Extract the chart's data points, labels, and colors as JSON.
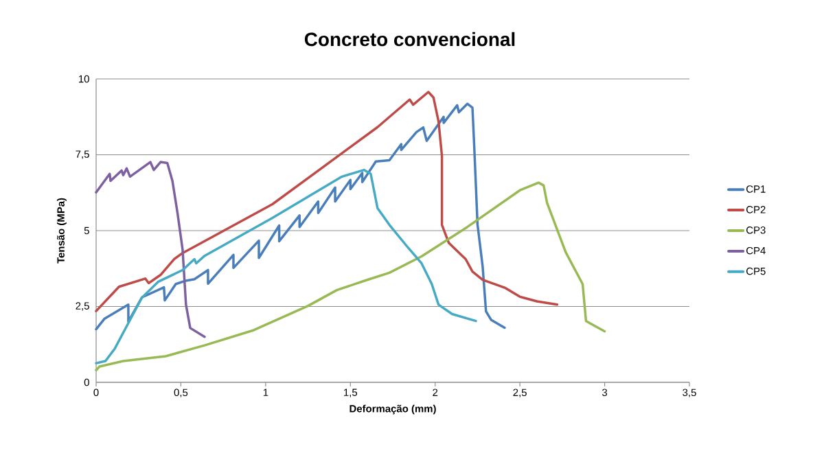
{
  "chart_data": {
    "type": "line",
    "title": "Concreto convencional",
    "xlabel": "Deformação (mm)",
    "ylabel": "Tensão (MPa)",
    "xlim": [
      0,
      3.5
    ],
    "ylim": [
      0,
      10
    ],
    "xticks": [
      0,
      {
        "value": 0.5,
        "label": "0,5"
      },
      1,
      {
        "value": 1.5,
        "label": "1,5"
      },
      2,
      {
        "value": 2.5,
        "label": "2,5"
      },
      3,
      {
        "value": 3.5,
        "label": "3,5"
      }
    ],
    "yticks": [
      0,
      {
        "value": 2.5,
        "label": "2,5"
      },
      5,
      {
        "value": 7.5,
        "label": "7,5"
      },
      10
    ],
    "grid": "y",
    "legend": "right",
    "marker": "none",
    "line_style": "solid",
    "series": [
      {
        "name": "CP1",
        "color": "#4a7ebb",
        "x": [
          0,
          0.05,
          0.19,
          0.19,
          0.27,
          0.4,
          0.405,
          0.47,
          0.53,
          0.58,
          0.66,
          0.66,
          0.81,
          0.81,
          0.96,
          0.96,
          1.08,
          1.08,
          1.2,
          1.2,
          1.31,
          1.31,
          1.41,
          1.41,
          1.5,
          1.5,
          1.57,
          1.57,
          1.65,
          1.73,
          1.8,
          1.8,
          1.89,
          1.93,
          1.95,
          2.05,
          2.05,
          2.13,
          2.14,
          2.19,
          2.22,
          2.23,
          2.25,
          2.28,
          2.3,
          2.33,
          2.41
        ],
        "values": [
          1.75,
          2.1,
          2.56,
          2.0,
          2.8,
          3.13,
          2.7,
          3.24,
          3.35,
          3.4,
          3.7,
          3.25,
          4.2,
          3.77,
          4.67,
          4.1,
          5.17,
          4.65,
          5.5,
          5.12,
          5.96,
          5.58,
          6.42,
          5.96,
          6.67,
          6.37,
          6.9,
          6.6,
          7.28,
          7.32,
          7.85,
          7.66,
          8.25,
          8.4,
          7.96,
          8.75,
          8.55,
          9.13,
          8.9,
          9.18,
          9.05,
          7.85,
          5.2,
          3.83,
          2.34,
          2.06,
          1.8
        ]
      },
      {
        "name": "CP2",
        "color": "#be4b48",
        "x": [
          0,
          0.135,
          0.29,
          0.31,
          0.38,
          0.46,
          0.51,
          1.04,
          1.66,
          1.85,
          1.87,
          1.96,
          1.99,
          2.02,
          2.04,
          2.04,
          2.08,
          2.18,
          2.22,
          2.28,
          2.41,
          2.5,
          2.6,
          2.72
        ],
        "values": [
          2.35,
          3.15,
          3.42,
          3.27,
          3.54,
          4.06,
          4.26,
          5.87,
          8.41,
          9.32,
          9.15,
          9.57,
          9.39,
          8.6,
          7.46,
          5.19,
          4.6,
          4.06,
          3.65,
          3.38,
          3.12,
          2.82,
          2.67,
          2.56
        ]
      },
      {
        "name": "CP3",
        "color": "#98b954",
        "x": [
          0,
          0.02,
          0.16,
          0.41,
          0.64,
          0.93,
          1.25,
          1.42,
          1.59,
          1.73,
          1.92,
          2.19,
          2.5,
          2.57,
          2.61,
          2.64,
          2.66,
          2.77,
          2.87,
          2.89,
          3.0
        ],
        "values": [
          0.4,
          0.52,
          0.7,
          0.86,
          1.22,
          1.72,
          2.52,
          3.04,
          3.36,
          3.61,
          4.15,
          5.12,
          6.33,
          6.49,
          6.58,
          6.49,
          5.92,
          4.29,
          3.24,
          2.02,
          1.68
        ]
      },
      {
        "name": "CP4",
        "color": "#7d60a0",
        "x": [
          0,
          0.08,
          0.085,
          0.15,
          0.16,
          0.18,
          0.2,
          0.32,
          0.34,
          0.38,
          0.42,
          0.45,
          0.48,
          0.51,
          0.53,
          0.555,
          0.64
        ],
        "values": [
          6.26,
          6.87,
          6.64,
          6.98,
          6.83,
          7.05,
          6.78,
          7.26,
          7.0,
          7.26,
          7.23,
          6.64,
          5.58,
          4.38,
          2.56,
          1.79,
          1.5
        ]
      },
      {
        "name": "CP5",
        "color": "#46aac5",
        "x": [
          0,
          0.055,
          0.11,
          0.19,
          0.27,
          0.365,
          0.51,
          0.58,
          0.59,
          0.64,
          1.04,
          1.45,
          1.58,
          1.62,
          1.66,
          1.73,
          1.84,
          1.92,
          1.98,
          2.02,
          2.1,
          2.24
        ],
        "values": [
          0.63,
          0.7,
          1.11,
          1.95,
          2.79,
          3.31,
          3.7,
          4.06,
          3.92,
          4.17,
          5.42,
          6.78,
          7.0,
          6.87,
          5.74,
          5.19,
          4.44,
          3.92,
          3.24,
          2.56,
          2.25,
          2.02
        ]
      }
    ]
  }
}
